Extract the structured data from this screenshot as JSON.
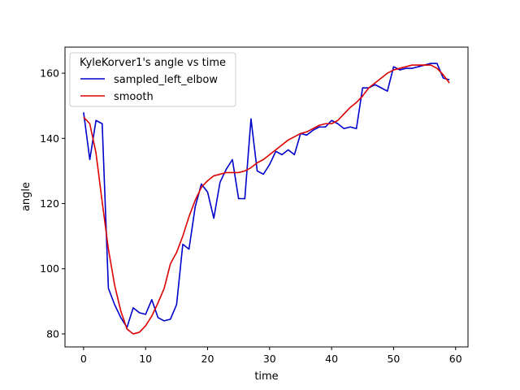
{
  "chart_data": {
    "type": "line",
    "title": "",
    "xlabel": "time",
    "ylabel": "angle",
    "xlim": [
      -3,
      62
    ],
    "ylim": [
      76,
      168
    ],
    "xticks": [
      0,
      10,
      20,
      30,
      40,
      50,
      60
    ],
    "yticks": [
      80,
      100,
      120,
      140,
      160
    ],
    "grid": false,
    "legend": {
      "title": "KyleKorver1's angle vs time",
      "placement": "top-left"
    },
    "x": [
      0,
      1,
      2,
      3,
      4,
      5,
      6,
      7,
      8,
      9,
      10,
      11,
      12,
      13,
      14,
      15,
      16,
      17,
      18,
      19,
      20,
      21,
      22,
      23,
      24,
      25,
      26,
      27,
      28,
      29,
      30,
      31,
      32,
      33,
      34,
      35,
      36,
      37,
      38,
      39,
      40,
      41,
      42,
      43,
      44,
      45,
      46,
      47,
      48,
      49,
      50,
      51,
      52,
      53,
      54,
      55,
      56,
      57,
      58,
      59
    ],
    "series": [
      {
        "name": "sampled_left_elbow",
        "color": "#0000cc",
        "values": [
          148,
          133.5,
          145.5,
          144.5,
          94,
          89,
          85,
          82,
          88,
          86.5,
          86,
          90.5,
          85,
          84,
          84.5,
          89,
          107.5,
          106,
          119,
          126,
          123.5,
          115.5,
          126.5,
          130.5,
          133.5,
          121.5,
          121.5,
          146,
          130,
          129,
          132,
          136,
          135,
          136.5,
          135,
          141.5,
          141,
          142.5,
          143.5,
          143.5,
          145.5,
          144.5,
          143,
          143.5,
          143,
          155.5,
          155.5,
          156.5,
          155.5,
          154.5,
          162,
          161,
          161.5,
          161.5,
          162,
          162.5,
          163,
          163,
          158.5,
          158
        ]
      },
      {
        "name": "smooth",
        "color": "#dd0000",
        "values": [
          146.5,
          144.5,
          135.5,
          120.5,
          106,
          95,
          87,
          81.5,
          80,
          80.5,
          82.5,
          85.5,
          89.5,
          94,
          101.5,
          105,
          110,
          116,
          121,
          125,
          127,
          128.5,
          129,
          129.5,
          129.5,
          129.5,
          130,
          131,
          132.5,
          133.5,
          135,
          136.5,
          138,
          139.5,
          140.5,
          141.5,
          142,
          143,
          144,
          144.5,
          144.5,
          145.5,
          147.5,
          149.5,
          151,
          153,
          155.5,
          157,
          158.5,
          160,
          161,
          161.5,
          162,
          162.5,
          162.5,
          162.5,
          162.5,
          161.5,
          159.5,
          157
        ]
      }
    ]
  }
}
